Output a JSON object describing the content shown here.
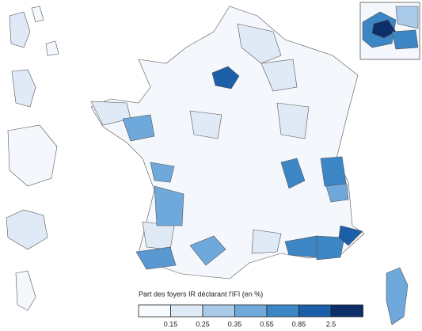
{
  "legend": {
    "title": "Part des foyers IR déclarant l'IFI (en %)",
    "breaks": [
      0.15,
      0.25,
      0.35,
      0.55,
      0.85,
      2.5
    ],
    "colors": [
      "#f7fbff",
      "#deebf7",
      "#a9cbe9",
      "#6fa8da",
      "#3d86c6",
      "#1a5fa8",
      "#0c2f6a"
    ]
  }
}
